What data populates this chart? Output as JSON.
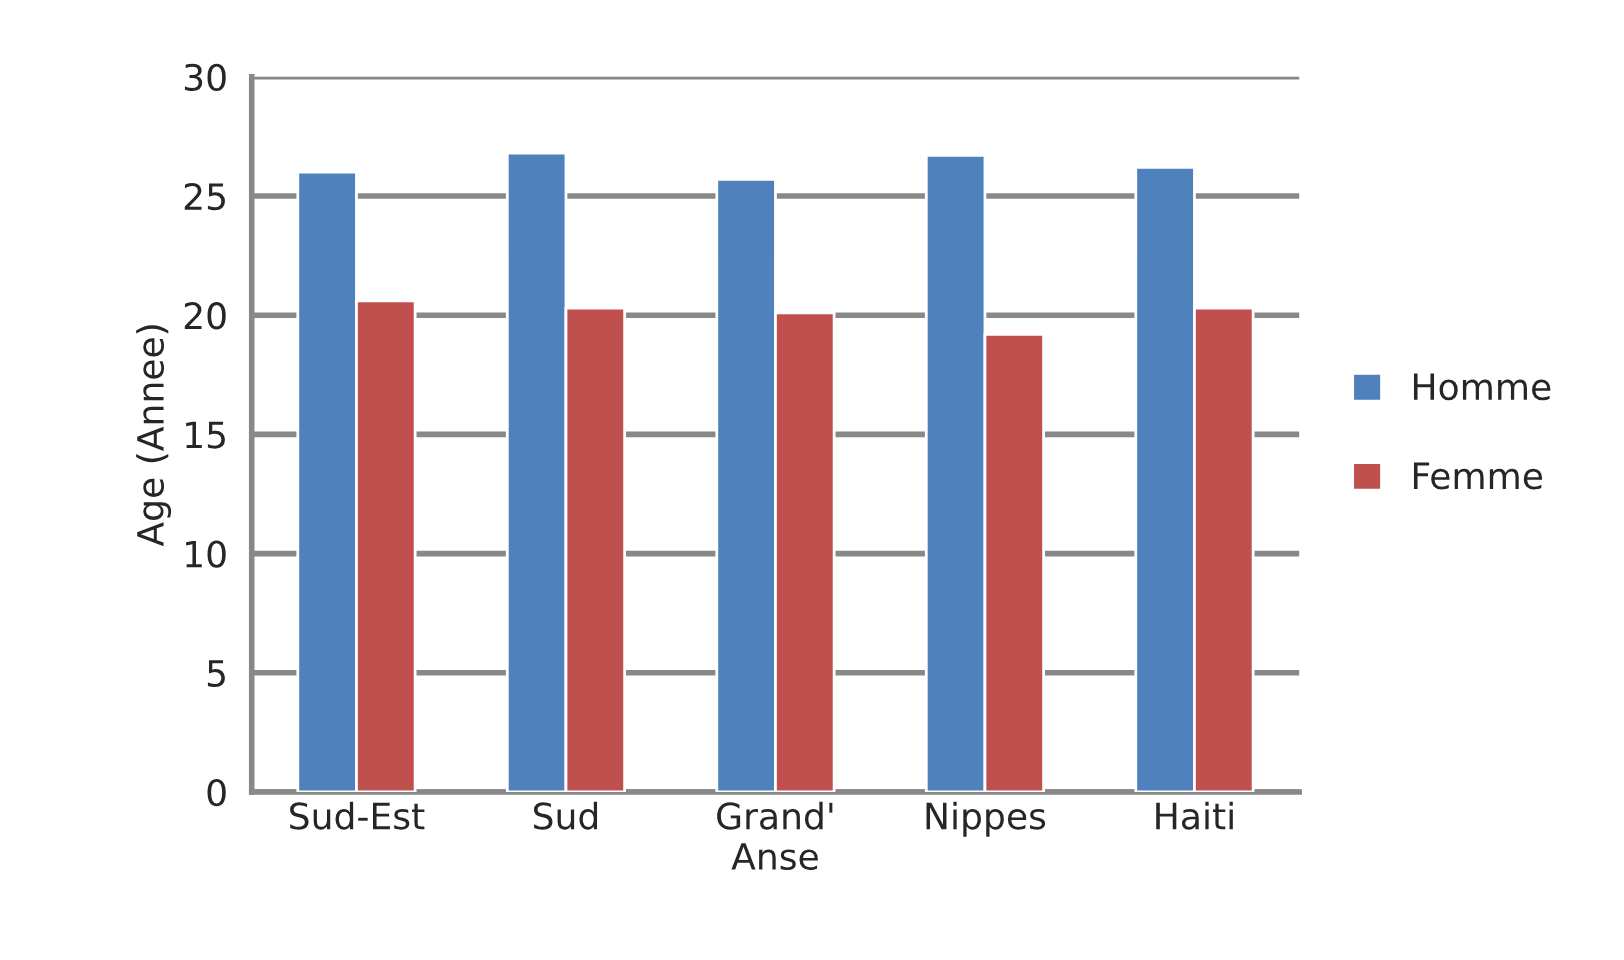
{
  "chart_data": {
    "type": "bar",
    "ylabel": "Age (Annee)",
    "categories": [
      "Sud-Est",
      "Sud",
      "Grand'\nAnse",
      "Nippes",
      "Haiti"
    ],
    "series": [
      {
        "name": "Homme",
        "color": "#4f81bd",
        "values": [
          26.0,
          26.8,
          25.7,
          26.7,
          26.2
        ]
      },
      {
        "name": "Femme",
        "color": "#c0504d",
        "values": [
          20.6,
          20.3,
          20.1,
          19.2,
          20.3
        ]
      }
    ],
    "ylim": [
      0,
      30
    ],
    "yticks": [
      0,
      5,
      10,
      15,
      20,
      25,
      30
    ],
    "grid": "y",
    "legend": "right"
  }
}
